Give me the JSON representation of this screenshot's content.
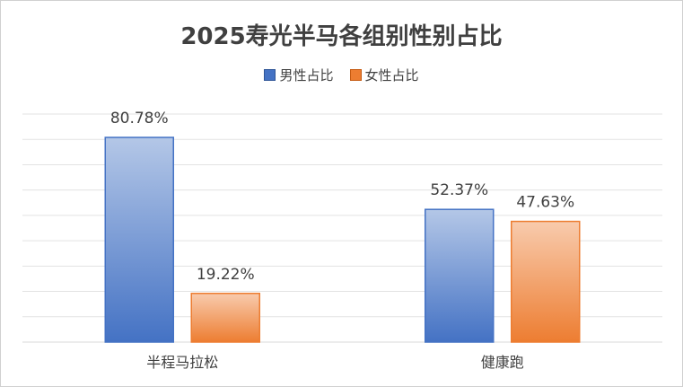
{
  "chart_data": {
    "type": "bar",
    "title": "2025寿光半马各组别性别占比",
    "categories": [
      "半程马拉松",
      "健康跑"
    ],
    "series": [
      {
        "name": "男性占比",
        "values": [
          80.78,
          52.37
        ],
        "labels": [
          "80.78%",
          "52.37%"
        ],
        "color": "#4472c4"
      },
      {
        "name": "女性占比",
        "values": [
          19.22,
          47.63
        ],
        "labels": [
          "19.22%",
          "47.63%"
        ],
        "color": "#ed7d31"
      }
    ],
    "ylim": [
      0,
      90
    ],
    "gridlines": true,
    "legend_position": "top"
  }
}
